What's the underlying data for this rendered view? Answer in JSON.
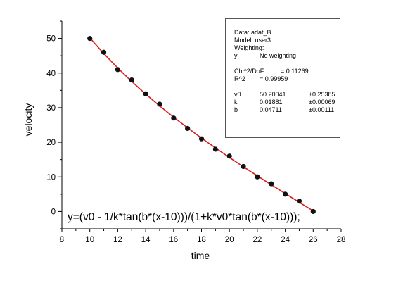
{
  "chart_data": {
    "type": "scatter",
    "title": "",
    "xlabel": "time",
    "ylabel": "velocity",
    "xlim": [
      8,
      28
    ],
    "ylim": [
      -5,
      55
    ],
    "xticks": [
      "8",
      "10",
      "12",
      "14",
      "16",
      "18",
      "20",
      "22",
      "24",
      "26",
      "28"
    ],
    "yticks": [
      "0",
      "10",
      "20",
      "30",
      "40",
      "50"
    ],
    "grid": false,
    "annotation": "y=(v0 - 1/k*tan(b*(x-10)))/(1+k*v0*tan(b*(x-10)));",
    "series": [
      {
        "marker_color": "#111111",
        "x": [
          10,
          11,
          12,
          13,
          14,
          15,
          16,
          17,
          18,
          19,
          20,
          21,
          22,
          23,
          24,
          25,
          26
        ],
        "y": [
          50,
          46,
          41,
          38,
          34,
          31,
          27,
          24,
          21,
          18,
          16,
          13,
          10,
          8,
          5,
          3,
          0
        ]
      }
    ],
    "fit": {
      "color": "#d81e1e",
      "x_range": [
        10,
        26
      ],
      "params": {
        "v0": 50.20041,
        "k": 0.01881,
        "b": 0.04711
      }
    }
  },
  "fit_report": {
    "data_line": "Data: adat_B",
    "model_line": "Model: user3",
    "weighting_label": "Weighting:",
    "weighting_var": "y",
    "weighting_value": "No weighting",
    "chi_label": "Chi^2/DoF",
    "chi_value": "= 0.11269",
    "r2_label": "R^2",
    "r2_value": "=  0.99959",
    "params": [
      {
        "name": "v0",
        "value": "50.20041",
        "error": "±0.25385"
      },
      {
        "name": "k",
        "value": "0.01881",
        "error": "±0.00069"
      },
      {
        "name": "b",
        "value": "0.04711",
        "error": "±0.00111"
      }
    ]
  }
}
